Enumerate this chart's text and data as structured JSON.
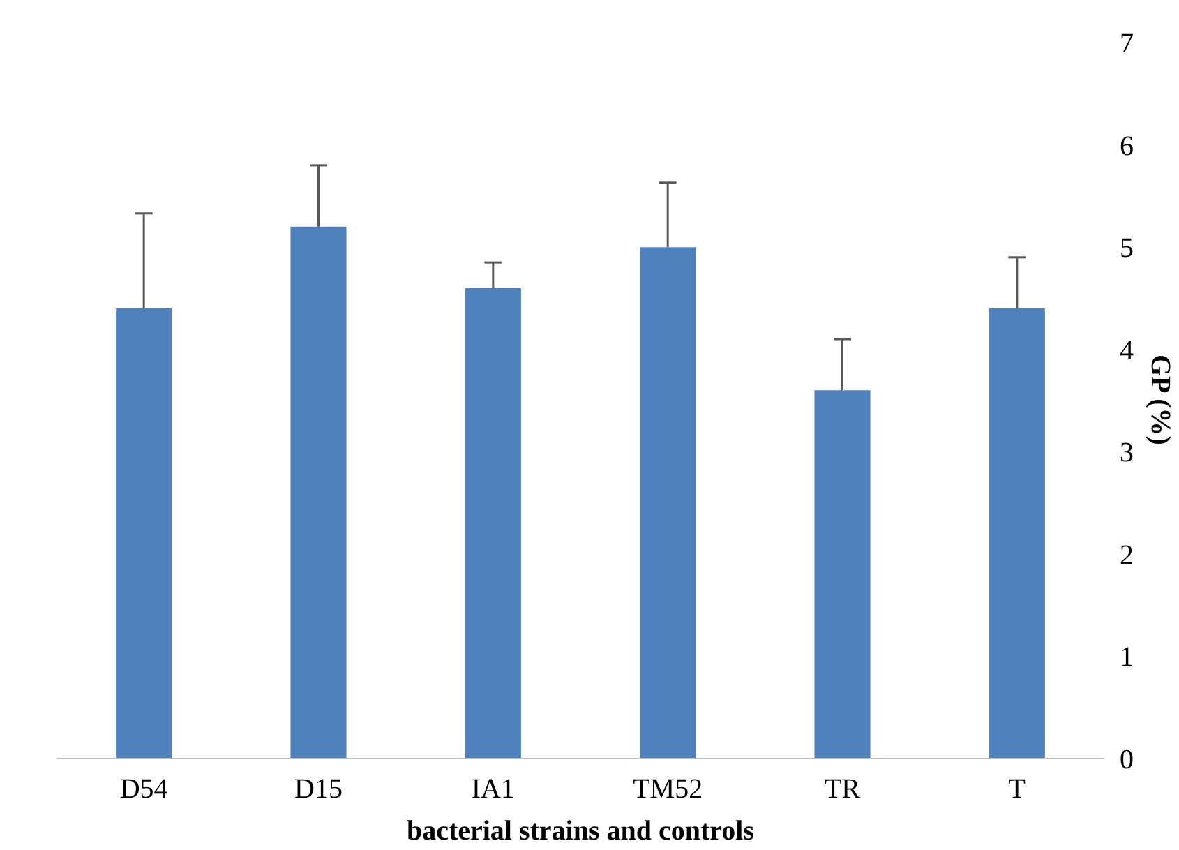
{
  "chart_data": {
    "type": "bar",
    "xlabel": "bacterial strains and controls",
    "ylabel": "GP (%)",
    "categories": [
      "D54",
      "D15",
      "IA1",
      "TM52",
      "TR",
      "T"
    ],
    "values": [
      4.4,
      5.2,
      4.6,
      5.0,
      3.6,
      4.4
    ],
    "errors": [
      [
        4.4,
        5.33
      ],
      [
        5.2,
        5.8
      ],
      [
        4.6,
        4.85
      ],
      [
        5.0,
        5.63
      ],
      [
        3.6,
        4.1
      ],
      [
        4.4,
        4.9
      ]
    ],
    "color": "#4f81bd",
    "ylim": [
      0,
      7
    ],
    "yticks": [
      0,
      1,
      2,
      3,
      4,
      5,
      6,
      7
    ],
    "grid": false
  }
}
